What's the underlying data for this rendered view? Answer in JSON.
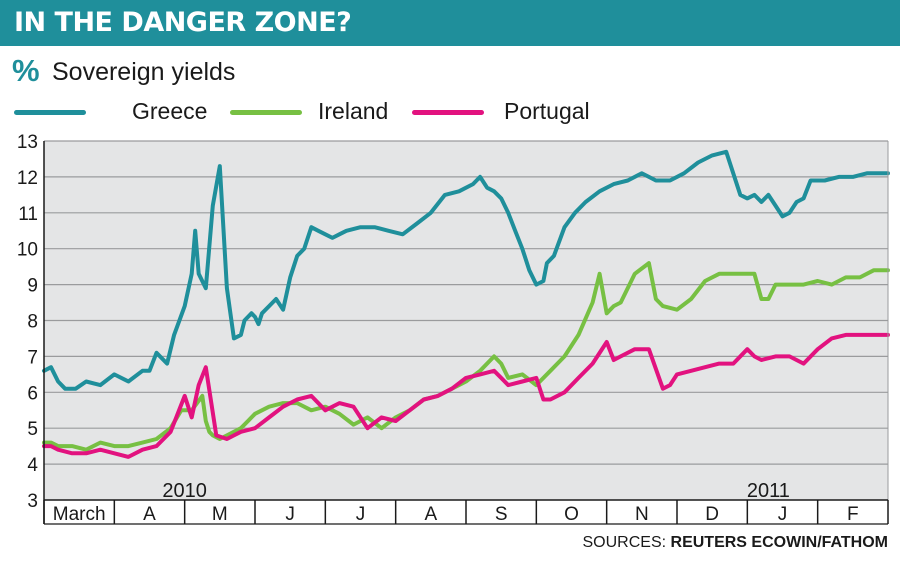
{
  "header": {
    "title": "IN THE DANGER ZONE?",
    "subtitle_icon": "%",
    "subtitle": "Sovereign yields"
  },
  "legend": [
    {
      "label": "Greece",
      "color": "#1f8f9b"
    },
    {
      "label": "Ireland",
      "color": "#77c043"
    },
    {
      "label": "Portugal",
      "color": "#e2127f"
    }
  ],
  "footer": {
    "sources_prefix": "SOURCES:",
    "sources_names": "REUTERS ECOWIN/FATHOM"
  },
  "chart_data": {
    "type": "line",
    "title": "Sovereign yields",
    "ylabel": "%",
    "ylim": [
      3,
      13
    ],
    "yticks": [
      3,
      4,
      5,
      6,
      7,
      8,
      9,
      10,
      11,
      12,
      13
    ],
    "xlim": [
      0,
      12
    ],
    "x_unit": "months since start of March 2010",
    "months": [
      "March",
      "A",
      "M",
      "J",
      "J",
      "A",
      "S",
      "O",
      "N",
      "D",
      "J",
      "F"
    ],
    "years": [
      {
        "label": "2010",
        "x": 2.0
      },
      {
        "label": "2011",
        "x": 10.3
      }
    ],
    "series": [
      {
        "name": "Greece",
        "color": "#1f8f9b",
        "x": [
          0,
          0.1,
          0.2,
          0.3,
          0.45,
          0.6,
          0.8,
          1.0,
          1.2,
          1.4,
          1.5,
          1.6,
          1.75,
          1.85,
          2.0,
          2.1,
          2.15,
          2.2,
          2.3,
          2.4,
          2.5,
          2.6,
          2.7,
          2.8,
          2.85,
          2.9,
          2.95,
          3.0,
          3.05,
          3.1,
          3.2,
          3.3,
          3.4,
          3.5,
          3.6,
          3.7,
          3.8,
          3.9,
          4.0,
          4.1,
          4.2,
          4.3,
          4.5,
          4.7,
          4.9,
          5.1,
          5.3,
          5.5,
          5.7,
          5.9,
          6.1,
          6.2,
          6.3,
          6.4,
          6.5,
          6.6,
          6.7,
          6.8,
          6.9,
          7.0,
          7.1,
          7.15,
          7.25,
          7.4,
          7.55,
          7.7,
          7.9,
          8.1,
          8.3,
          8.5,
          8.6,
          8.7,
          8.9,
          9.1,
          9.3,
          9.5,
          9.7,
          9.9,
          10.0,
          10.1,
          10.2,
          10.3,
          10.4,
          10.5,
          10.6,
          10.7,
          10.8,
          10.9,
          11.0,
          11.1,
          11.3,
          11.5,
          11.7,
          11.9,
          12.0
        ],
        "values": [
          6.6,
          6.7,
          6.3,
          6.1,
          6.1,
          6.3,
          6.2,
          6.5,
          6.3,
          6.6,
          6.6,
          7.1,
          6.8,
          7.6,
          8.4,
          9.3,
          10.5,
          9.3,
          8.9,
          11.2,
          12.3,
          8.9,
          7.5,
          7.6,
          8.0,
          8.1,
          8.2,
          8.1,
          7.9,
          8.2,
          8.4,
          8.6,
          8.3,
          9.2,
          9.8,
          10.0,
          10.6,
          10.5,
          10.4,
          10.3,
          10.4,
          10.5,
          10.6,
          10.6,
          10.5,
          10.4,
          10.7,
          11.0,
          11.5,
          11.6,
          11.8,
          12.0,
          11.7,
          11.6,
          11.4,
          11.0,
          10.5,
          10.0,
          9.4,
          9.0,
          9.1,
          9.6,
          9.8,
          10.6,
          11.0,
          11.3,
          11.6,
          11.8,
          11.9,
          12.1,
          12.0,
          11.9,
          11.9,
          12.1,
          12.4,
          12.6,
          12.7,
          11.5,
          11.4,
          11.5,
          11.3,
          11.5,
          11.2,
          10.9,
          11.0,
          11.3,
          11.4,
          11.9,
          11.9,
          11.9,
          12.0,
          12.0,
          12.1,
          12.1,
          12.1
        ]
      },
      {
        "name": "Ireland",
        "color": "#77c043",
        "x": [
          0,
          0.1,
          0.2,
          0.4,
          0.6,
          0.8,
          1.0,
          1.2,
          1.4,
          1.6,
          1.8,
          1.95,
          2.1,
          2.25,
          2.3,
          2.35,
          2.4,
          2.5,
          2.6,
          2.7,
          2.8,
          2.9,
          3.0,
          3.2,
          3.4,
          3.6,
          3.8,
          4.0,
          4.2,
          4.4,
          4.6,
          4.8,
          5.0,
          5.2,
          5.4,
          5.6,
          5.8,
          6.0,
          6.2,
          6.4,
          6.5,
          6.6,
          6.8,
          7.0,
          7.2,
          7.4,
          7.6,
          7.8,
          7.9,
          8.0,
          8.1,
          8.2,
          8.4,
          8.6,
          8.7,
          8.8,
          9.0,
          9.2,
          9.4,
          9.6,
          9.8,
          10.0,
          10.1,
          10.2,
          10.3,
          10.4,
          10.6,
          10.8,
          11.0,
          11.2,
          11.4,
          11.6,
          11.8,
          12.0
        ],
        "values": [
          4.6,
          4.6,
          4.5,
          4.5,
          4.4,
          4.6,
          4.5,
          4.5,
          4.6,
          4.7,
          5.0,
          5.5,
          5.5,
          5.9,
          5.2,
          4.9,
          4.8,
          4.7,
          4.8,
          4.9,
          5.0,
          5.2,
          5.4,
          5.6,
          5.7,
          5.7,
          5.5,
          5.6,
          5.4,
          5.1,
          5.3,
          5.0,
          5.3,
          5.5,
          5.8,
          5.9,
          6.1,
          6.3,
          6.6,
          7.0,
          6.8,
          6.4,
          6.5,
          6.2,
          6.6,
          7.0,
          7.6,
          8.5,
          9.3,
          8.2,
          8.4,
          8.5,
          9.3,
          9.6,
          8.6,
          8.4,
          8.3,
          8.6,
          9.1,
          9.3,
          9.3,
          9.3,
          9.3,
          8.6,
          8.6,
          9.0,
          9.0,
          9.0,
          9.1,
          9.0,
          9.2,
          9.2,
          9.4,
          9.4
        ]
      },
      {
        "name": "Portugal",
        "color": "#e2127f",
        "x": [
          0,
          0.1,
          0.2,
          0.4,
          0.6,
          0.8,
          1.0,
          1.2,
          1.4,
          1.6,
          1.8,
          2.0,
          2.1,
          2.2,
          2.3,
          2.45,
          2.6,
          2.7,
          2.8,
          3.0,
          3.2,
          3.4,
          3.6,
          3.8,
          4.0,
          4.2,
          4.4,
          4.6,
          4.8,
          5.0,
          5.2,
          5.4,
          5.6,
          5.8,
          6.0,
          6.2,
          6.4,
          6.5,
          6.6,
          6.8,
          7.0,
          7.1,
          7.2,
          7.4,
          7.6,
          7.8,
          8.0,
          8.1,
          8.2,
          8.4,
          8.6,
          8.8,
          8.9,
          9.0,
          9.2,
          9.4,
          9.6,
          9.8,
          10.0,
          10.1,
          10.2,
          10.4,
          10.6,
          10.8,
          11.0,
          11.2,
          11.4,
          11.6,
          11.8,
          12.0
        ],
        "values": [
          4.5,
          4.5,
          4.4,
          4.3,
          4.3,
          4.4,
          4.3,
          4.2,
          4.4,
          4.5,
          4.9,
          5.9,
          5.3,
          6.2,
          6.7,
          4.8,
          4.7,
          4.8,
          4.9,
          5.0,
          5.3,
          5.6,
          5.8,
          5.9,
          5.5,
          5.7,
          5.6,
          5.0,
          5.3,
          5.2,
          5.5,
          5.8,
          5.9,
          6.1,
          6.4,
          6.5,
          6.6,
          6.4,
          6.2,
          6.3,
          6.4,
          5.8,
          5.8,
          6.0,
          6.4,
          6.8,
          7.4,
          6.9,
          7.0,
          7.2,
          7.2,
          6.1,
          6.2,
          6.5,
          6.6,
          6.7,
          6.8,
          6.8,
          7.2,
          7.0,
          6.9,
          7.0,
          7.0,
          6.8,
          7.2,
          7.5,
          7.6,
          7.6,
          7.6,
          7.6
        ]
      }
    ]
  }
}
